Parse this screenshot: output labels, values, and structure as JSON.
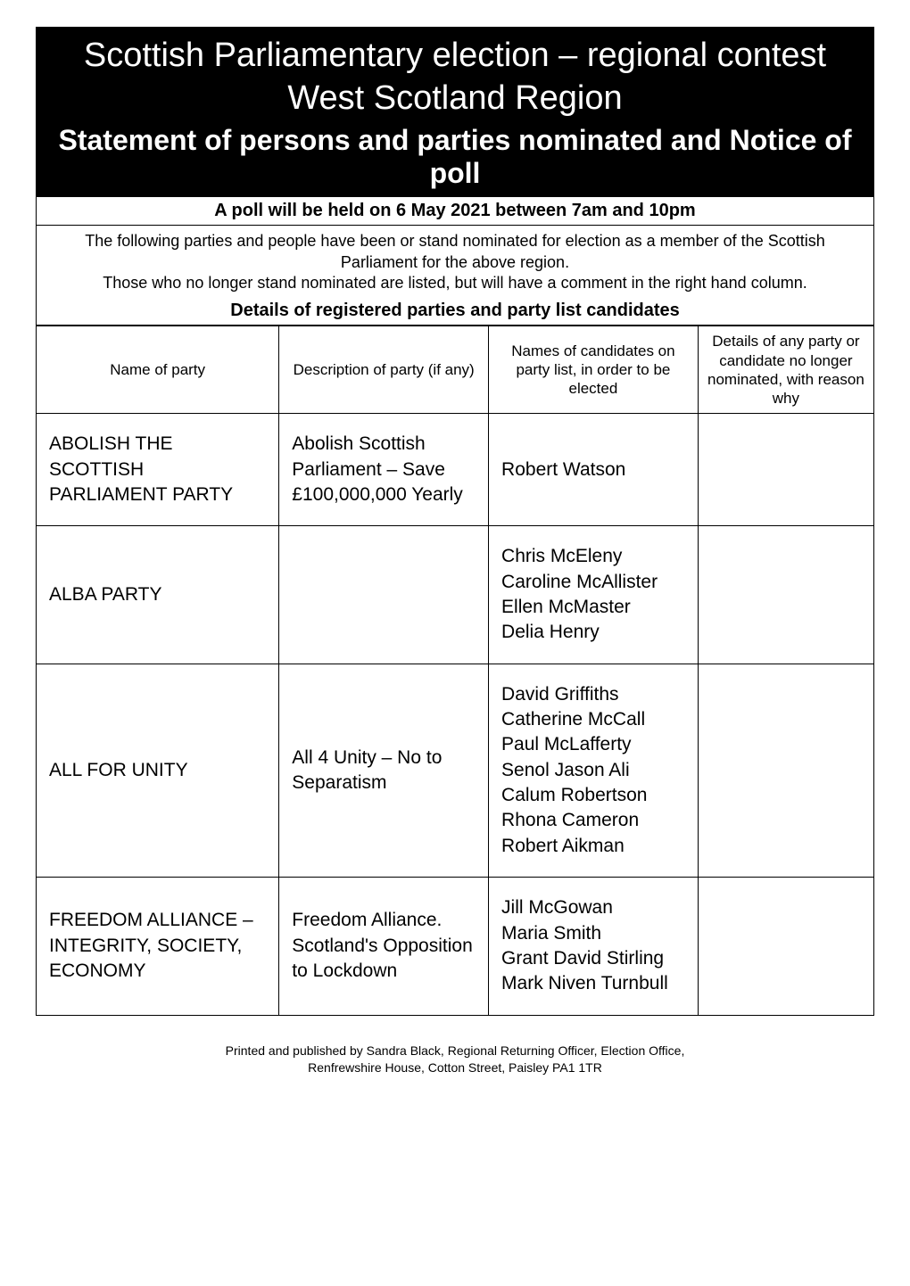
{
  "header": {
    "main_title": "Scottish Parliamentary election – regional contest",
    "region_title": "West Scotland Region",
    "statement_title": "Statement of persons and parties nominated and Notice of poll"
  },
  "poll_notice": "A poll will be held on 6 May 2021 between 7am and 10pm",
  "intro_line1": "The following parties and people have been or stand nominated for election as a member of the Scottish Parliament for the above region.",
  "intro_line2": "Those who no longer stand nominated are listed, but will have a comment in the right hand column.",
  "details_header": "Details of registered parties and party list candidates",
  "columns": {
    "name": "Name of party",
    "description": "Description of party (if any)",
    "candidates": "Names of candidates on party list, in order to be elected",
    "details": "Details of any party or candidate no longer nominated, with reason why"
  },
  "rows": [
    {
      "party": "ABOLISH THE SCOTTISH PARLIAMENT PARTY",
      "description": "Abolish Scottish Parliament – Save £100,000,000 Yearly",
      "candidates": [
        "Robert Watson"
      ],
      "details": ""
    },
    {
      "party": "ALBA PARTY",
      "description": "",
      "candidates": [
        "Chris McEleny",
        "Caroline McAllister",
        "Ellen McMaster",
        "Delia Henry"
      ],
      "details": ""
    },
    {
      "party": "ALL FOR UNITY",
      "description": "All 4 Unity – No to Separatism",
      "candidates": [
        "David Griffiths",
        "Catherine McCall",
        "Paul McLafferty",
        "Senol Jason Ali",
        "Calum Robertson",
        "Rhona Cameron",
        "Robert Aikman"
      ],
      "details": ""
    },
    {
      "party": "FREEDOM ALLIANCE – INTEGRITY, SOCIETY, ECONOMY",
      "description": "Freedom Alliance. Scotland's Opposition to Lockdown",
      "candidates": [
        "Jill McGowan",
        "Maria Smith",
        "Grant David Stirling",
        "Mark Niven Turnbull"
      ],
      "details": ""
    }
  ],
  "footer": {
    "line1": "Printed and published by Sandra Black, Regional Returning Officer, Election Office,",
    "line2": "Renfrewshire House, Cotton Street, Paisley PA1 1TR"
  },
  "styling": {
    "header_bg": "#000000",
    "header_text": "#ffffff",
    "body_bg": "#ffffff",
    "border_color": "#000000",
    "main_title_fontsize": 38,
    "statement_fontsize": 32,
    "poll_notice_fontsize": 20,
    "intro_fontsize": 18,
    "th_fontsize": 17,
    "td_fontsize": 21,
    "footer_fontsize": 14
  }
}
